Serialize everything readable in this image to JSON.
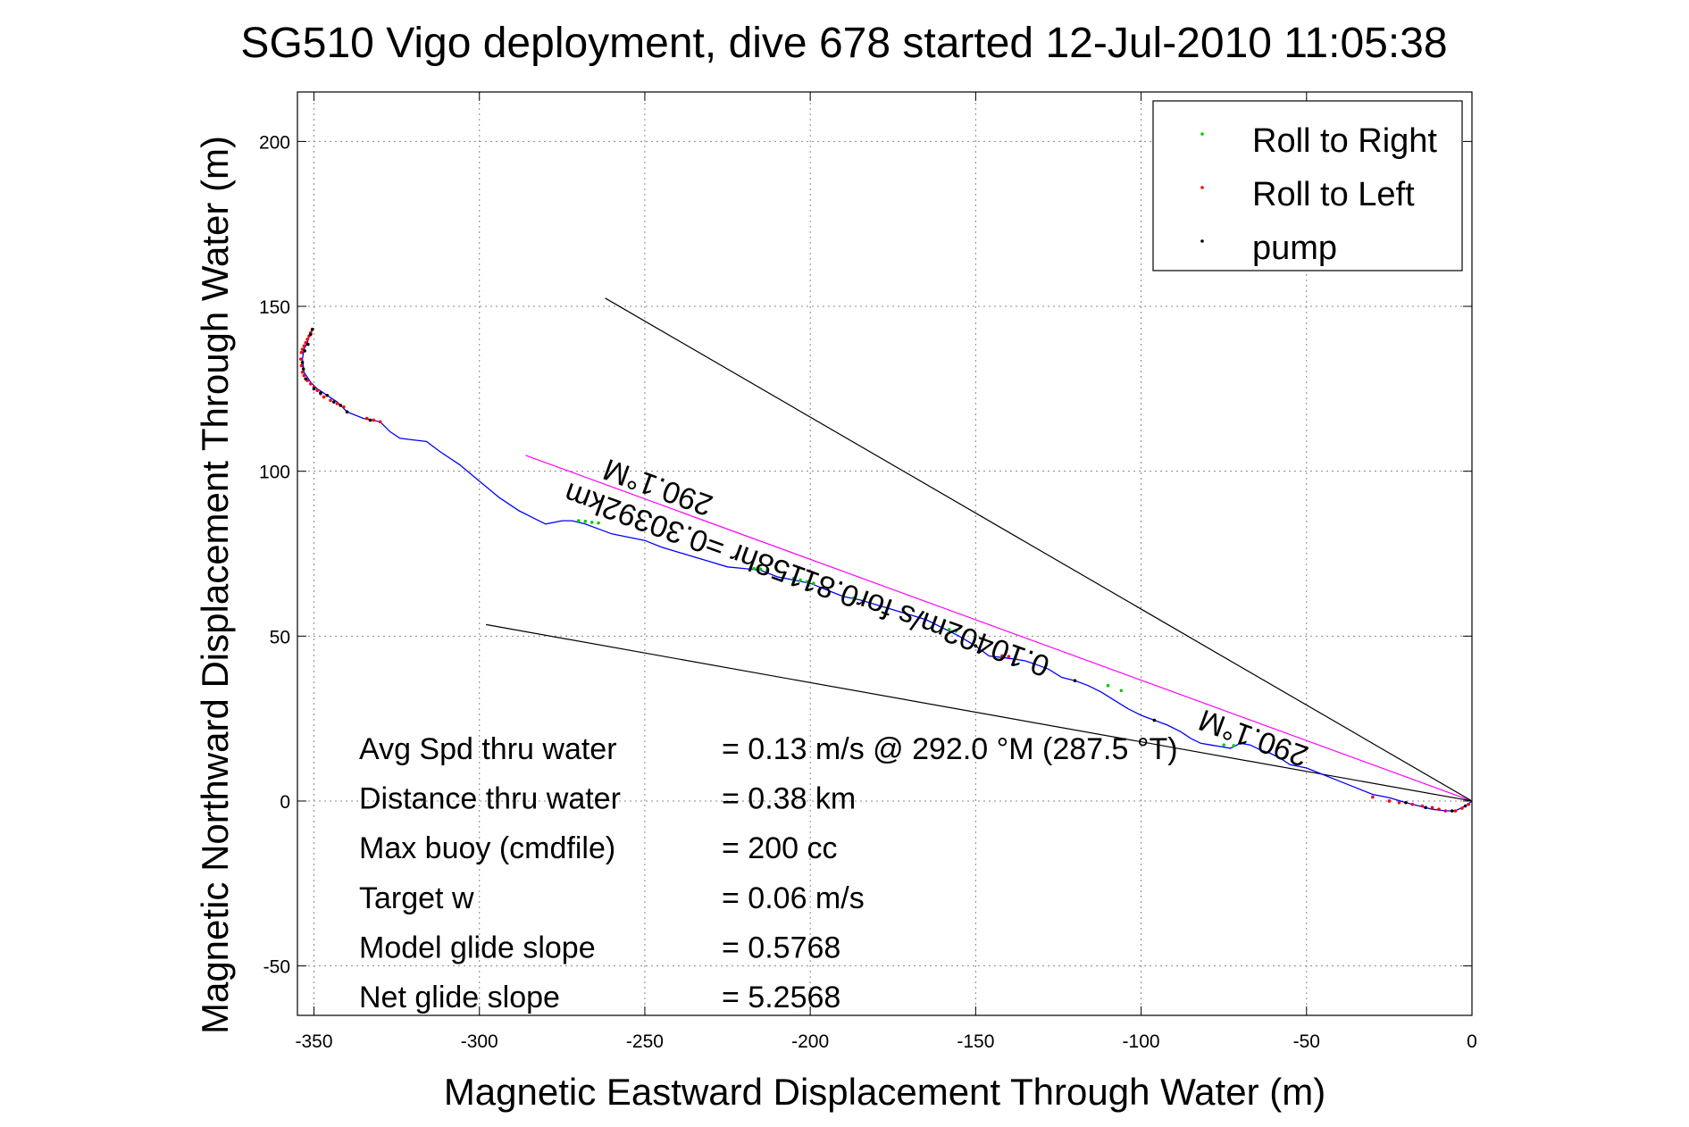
{
  "chart_data": {
    "type": "line",
    "title": "SG510 Vigo deployment, dive 678 started 12-Jul-2010 11:05:38",
    "xlabel": "Magnetic Eastward Displacement Through Water (m)",
    "ylabel": "Magnetic Northward Displacement Through Water (m)",
    "xlim": [
      -355,
      0
    ],
    "ylim": [
      -65,
      215
    ],
    "xticks": [
      -350,
      -300,
      -250,
      -200,
      -150,
      -100,
      -50,
      0
    ],
    "yticks": [
      -50,
      0,
      50,
      100,
      150,
      200
    ],
    "xtick_labels": [
      "-350",
      "-300",
      "-250",
      "-200",
      "-150",
      "-100",
      "-50",
      "0"
    ],
    "ytick_labels": [
      "-50",
      "0",
      "50",
      "100",
      "150",
      "200"
    ],
    "grid": true,
    "legend_position": "top-right",
    "legend": [
      "Roll to Right",
      "Roll to Left",
      "pump"
    ],
    "series": [
      {
        "name": "track",
        "color": "#0000ff",
        "x": [
          -350.5,
          -351.5,
          -352,
          -353,
          -353.5,
          -353,
          -351,
          -349,
          -346,
          -343,
          -340,
          -335,
          -330,
          -327,
          -324,
          -320,
          -316,
          -312,
          -306,
          -300,
          -294,
          -288,
          -284,
          -280,
          -275,
          -272,
          -268,
          -264,
          -260,
          -255,
          -250,
          -245,
          -240,
          -235,
          -230,
          -225,
          -220,
          -215,
          -210,
          -200,
          -195,
          -190,
          -185,
          -180,
          -175,
          -170,
          -165,
          -160,
          -155,
          -150,
          -146,
          -142,
          -138,
          -135,
          -132,
          -128,
          -124,
          -120,
          -116,
          -112,
          -108,
          -104,
          -100,
          -96,
          -92,
          -88,
          -85,
          -82,
          -79,
          -76,
          -73,
          -70,
          -67,
          -64,
          -61,
          -58,
          -55,
          -50,
          -45,
          -40,
          -35,
          -30,
          -25,
          -20,
          -16,
          -12,
          -8,
          -5,
          -2,
          0
        ],
        "y": [
          143,
          141,
          139,
          137,
          134,
          130,
          127,
          125,
          123,
          121,
          118,
          116,
          115,
          112,
          110,
          109.5,
          109,
          106,
          102,
          97,
          92,
          88,
          86,
          84,
          85,
          85,
          84,
          82.5,
          81,
          80,
          79,
          77,
          75.5,
          74,
          72.5,
          71,
          70.5,
          70,
          68,
          66,
          64,
          62,
          61,
          59.5,
          58,
          56.5,
          55,
          52.5,
          50,
          47,
          44,
          43.5,
          43,
          42.5,
          41.5,
          40,
          37.5,
          36.5,
          35,
          33,
          30.5,
          28,
          26,
          24.5,
          23,
          21,
          19,
          17.5,
          17,
          16.5,
          16,
          17.5,
          17,
          15.5,
          14.5,
          13,
          11,
          10,
          8,
          6,
          4,
          2,
          1,
          -0.5,
          -1.5,
          -2.5,
          -3,
          -3,
          -1.5,
          0
        ]
      },
      {
        "name": "Roll to Right",
        "color": "#00cc00",
        "x": [
          -270,
          -268,
          -266,
          -264,
          -217,
          -215,
          -213,
          -205,
          -203,
          -201,
          -199,
          -190,
          -187,
          -158,
          -156,
          -110,
          -106,
          -75,
          -72
        ],
        "y": [
          85,
          84.8,
          84.5,
          84.3,
          70.5,
          70.3,
          70.1,
          67.5,
          67,
          66.5,
          66,
          62,
          61.5,
          52,
          51.5,
          35,
          33.5,
          17,
          16.8
        ]
      },
      {
        "name": "Roll to Left",
        "color": "#ff0000",
        "x": [
          -350.5,
          -351,
          -351.5,
          -352,
          -352.5,
          -353,
          -353.5,
          -353.8,
          -354,
          -353.8,
          -353.5,
          -353,
          -352,
          -351,
          -350,
          -349,
          -348,
          -347,
          -345,
          -343,
          -341,
          -334,
          -332,
          -330,
          -142,
          -140,
          -138,
          -30,
          -25,
          -22,
          -18,
          -15,
          -12,
          -10,
          -8,
          -5,
          -3,
          -1
        ],
        "y": [
          143,
          142,
          141,
          140,
          139,
          138,
          137,
          136,
          134,
          132,
          130,
          129,
          127.5,
          126.5,
          125.5,
          124.5,
          123.5,
          122.5,
          121.5,
          120.5,
          119.5,
          116,
          115.5,
          115,
          44,
          43.8,
          43.5,
          1.2,
          0,
          -0.5,
          -1,
          -1.5,
          -2,
          -2.5,
          -3,
          -3,
          -2.2,
          -1
        ]
      },
      {
        "name": "pump",
        "color": "#000000",
        "x": [
          -351,
          -350.5,
          -351.8,
          -352.8,
          -353.5,
          -353.2,
          -352.5,
          -350,
          -348,
          -346,
          -344,
          -342,
          -340,
          -333,
          -150,
          -120,
          -96,
          -20,
          -14,
          -6,
          -2
        ],
        "y": [
          141.5,
          143,
          138.5,
          136.5,
          133,
          131,
          128,
          125,
          123.8,
          123,
          121,
          120,
          118,
          115.5,
          47,
          36.5,
          24.5,
          -0.5,
          -2,
          -3,
          -1.5
        ]
      }
    ],
    "reference_lines": [
      {
        "name": "heading-line",
        "color": "#ff00ff",
        "x": [
          -286,
          0
        ],
        "y": [
          104.8,
          0
        ]
      },
      {
        "name": "bound-line-upper",
        "color": "#000000",
        "x": [
          -262,
          0
        ],
        "y": [
          152.5,
          0
        ]
      },
      {
        "name": "bound-line-lower",
        "color": "#000000",
        "x": [
          -298,
          0
        ],
        "y": [
          53.5,
          0
        ]
      }
    ],
    "annotations": [
      {
        "name": "heading-label-upper",
        "text": "290.1°M",
        "x": -245,
        "y": 98,
        "rotate": 200
      },
      {
        "name": "heading-label-lower",
        "text": "290.1°M",
        "x": -65,
        "y": 22,
        "rotate": 200
      },
      {
        "name": "current-label",
        "text": "0.10402m/s for0.81158hr =0.30392km",
        "x": -200,
        "y": 70,
        "rotate": 200
      }
    ],
    "stats": [
      {
        "label": "Avg Spd thru water",
        "value": "=  0.13 m/s @ 292.0 °M (287.5 °T)"
      },
      {
        "label": "Distance thru water",
        "value": "=  0.38 km"
      },
      {
        "label": "Max buoy (cmdfile)",
        "value": "= 200 cc"
      },
      {
        "label": "Target w",
        "value": "= 0.06 m/s"
      },
      {
        "label": "Model glide slope",
        "value": "= 0.5768"
      },
      {
        "label": "Net glide slope",
        "value": "= 5.2568"
      }
    ]
  }
}
